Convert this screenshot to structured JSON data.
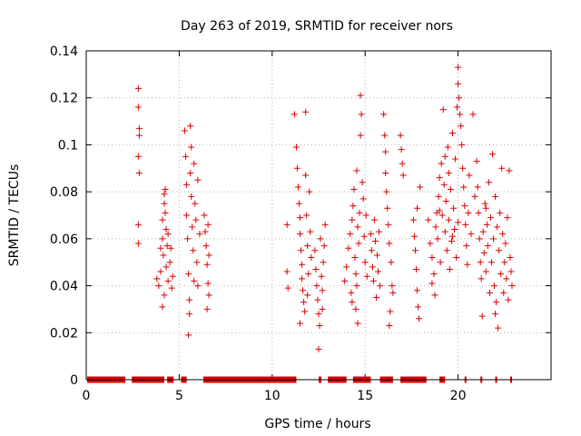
{
  "chart_data": {
    "type": "scatter",
    "title": "Day 263 of 2019, SRMTID for receiver nors",
    "xlabel": "GPS time / hours",
    "ylabel": "SRMTID / TECUs",
    "xlim": [
      0,
      25
    ],
    "ylim": [
      0,
      0.14
    ],
    "grid": true,
    "marker": "+",
    "xticks": [
      {
        "value": 0,
        "label": "0"
      },
      {
        "value": 5,
        "label": "5"
      },
      {
        "value": 10,
        "label": "10"
      },
      {
        "value": 15,
        "label": "15"
      },
      {
        "value": 20,
        "label": "20"
      }
    ],
    "yticks": [
      {
        "value": 0,
        "label": "0"
      },
      {
        "value": 0.02,
        "label": "0.02"
      },
      {
        "value": 0.04,
        "label": "0.04"
      },
      {
        "value": 0.06,
        "label": "0.06"
      },
      {
        "value": 0.08,
        "label": "0.08"
      },
      {
        "value": 0.1,
        "label": "0.1"
      },
      {
        "value": 0.12,
        "label": "0.12"
      },
      {
        "value": 0.14,
        "label": "0.14"
      }
    ],
    "series": [
      {
        "name": "nors",
        "color": "#dd0000",
        "points": [
          [
            2.8,
            0.124
          ],
          [
            2.8,
            0.116
          ],
          [
            2.85,
            0.107
          ],
          [
            2.85,
            0.104
          ],
          [
            2.8,
            0.095
          ],
          [
            2.85,
            0.088
          ],
          [
            2.8,
            0.066
          ],
          [
            2.8,
            0.058
          ],
          [
            3.8,
            0.043
          ],
          [
            3.9,
            0.04
          ],
          [
            4.0,
            0.046
          ],
          [
            4.0,
            0.056
          ],
          [
            4.1,
            0.068
          ],
          [
            4.1,
            0.06
          ],
          [
            4.15,
            0.053
          ],
          [
            4.2,
            0.079
          ],
          [
            4.2,
            0.075
          ],
          [
            4.2,
            0.036
          ],
          [
            4.25,
            0.071
          ],
          [
            4.3,
            0.064
          ],
          [
            4.3,
            0.048
          ],
          [
            4.35,
            0.057
          ],
          [
            4.4,
            0.042
          ],
          [
            4.5,
            0.05
          ],
          [
            4.55,
            0.056
          ],
          [
            4.6,
            0.039
          ],
          [
            4.65,
            0.044
          ],
          [
            4.1,
            0.031
          ],
          [
            4.25,
            0.081
          ],
          [
            4.4,
            0.062
          ],
          [
            5.3,
            0.106
          ],
          [
            5.35,
            0.095
          ],
          [
            5.4,
            0.083
          ],
          [
            5.4,
            0.07
          ],
          [
            5.45,
            0.06
          ],
          [
            5.5,
            0.045
          ],
          [
            5.5,
            0.019
          ],
          [
            5.55,
            0.028
          ],
          [
            5.6,
            0.108
          ],
          [
            5.6,
            0.088
          ],
          [
            5.65,
            0.078
          ],
          [
            5.7,
            0.065
          ],
          [
            5.75,
            0.055
          ],
          [
            5.8,
            0.092
          ],
          [
            5.8,
            0.042
          ],
          [
            5.85,
            0.075
          ],
          [
            5.9,
            0.068
          ],
          [
            5.95,
            0.05
          ],
          [
            6.0,
            0.085
          ],
          [
            6.0,
            0.04
          ],
          [
            6.1,
            0.062
          ],
          [
            5.55,
            0.034
          ],
          [
            5.65,
            0.099
          ],
          [
            6.35,
            0.07
          ],
          [
            6.4,
            0.063
          ],
          [
            6.45,
            0.057
          ],
          [
            6.5,
            0.049
          ],
          [
            6.55,
            0.041
          ],
          [
            6.6,
            0.036
          ],
          [
            6.5,
            0.03
          ],
          [
            6.55,
            0.066
          ],
          [
            6.6,
            0.053
          ],
          [
            10.8,
            0.066
          ],
          [
            10.8,
            0.046
          ],
          [
            10.85,
            0.039
          ],
          [
            11.2,
            0.113
          ],
          [
            11.3,
            0.099
          ],
          [
            11.35,
            0.09
          ],
          [
            11.4,
            0.082
          ],
          [
            11.45,
            0.075
          ],
          [
            11.5,
            0.069
          ],
          [
            11.5,
            0.062
          ],
          [
            11.55,
            0.055
          ],
          [
            11.6,
            0.049
          ],
          [
            11.6,
            0.043
          ],
          [
            11.65,
            0.038
          ],
          [
            11.7,
            0.033
          ],
          [
            11.75,
            0.029
          ],
          [
            11.8,
            0.114
          ],
          [
            11.8,
            0.087
          ],
          [
            11.85,
            0.07
          ],
          [
            11.9,
            0.057
          ],
          [
            11.95,
            0.045
          ],
          [
            12.0,
            0.08
          ],
          [
            12.05,
            0.063
          ],
          [
            12.1,
            0.052
          ],
          [
            11.5,
            0.024
          ],
          [
            11.9,
            0.036
          ],
          [
            12.3,
            0.055
          ],
          [
            12.35,
            0.047
          ],
          [
            12.4,
            0.04
          ],
          [
            12.45,
            0.034
          ],
          [
            12.5,
            0.028
          ],
          [
            12.5,
            0.013
          ],
          [
            12.55,
            0.023
          ],
          [
            12.6,
            0.06
          ],
          [
            12.65,
            0.044
          ],
          [
            12.7,
            0.038
          ],
          [
            12.75,
            0.05
          ],
          [
            12.8,
            0.057
          ],
          [
            12.85,
            0.066
          ],
          [
            12.7,
            0.03
          ],
          [
            13.9,
            0.042
          ],
          [
            14.0,
            0.048
          ],
          [
            14.1,
            0.056
          ],
          [
            14.2,
            0.062
          ],
          [
            14.25,
            0.037
          ],
          [
            14.3,
            0.068
          ],
          [
            14.35,
            0.074
          ],
          [
            14.4,
            0.081
          ],
          [
            14.45,
            0.052
          ],
          [
            14.5,
            0.045
          ],
          [
            14.5,
            0.03
          ],
          [
            14.55,
            0.089
          ],
          [
            14.6,
            0.065
          ],
          [
            14.6,
            0.024
          ],
          [
            14.65,
            0.058
          ],
          [
            14.7,
            0.071
          ],
          [
            14.75,
            0.121
          ],
          [
            14.75,
            0.104
          ],
          [
            14.8,
            0.113
          ],
          [
            14.85,
            0.084
          ],
          [
            14.9,
            0.077
          ],
          [
            14.95,
            0.061
          ],
          [
            15.0,
            0.05
          ],
          [
            15.05,
            0.07
          ],
          [
            15.1,
            0.044
          ],
          [
            14.3,
            0.033
          ],
          [
            14.55,
            0.04
          ],
          [
            15.3,
            0.062
          ],
          [
            15.35,
            0.055
          ],
          [
            15.4,
            0.048
          ],
          [
            15.45,
            0.042
          ],
          [
            15.5,
            0.068
          ],
          [
            15.55,
            0.059
          ],
          [
            15.6,
            0.035
          ],
          [
            15.65,
            0.053
          ],
          [
            15.7,
            0.046
          ],
          [
            15.75,
            0.063
          ],
          [
            15.8,
            0.04
          ],
          [
            16.0,
            0.113
          ],
          [
            16.05,
            0.104
          ],
          [
            16.1,
            0.097
          ],
          [
            16.1,
            0.088
          ],
          [
            16.15,
            0.08
          ],
          [
            16.2,
            0.073
          ],
          [
            16.25,
            0.066
          ],
          [
            16.3,
            0.023
          ],
          [
            16.3,
            0.058
          ],
          [
            16.35,
            0.029
          ],
          [
            16.4,
            0.05
          ],
          [
            16.45,
            0.04
          ],
          [
            16.5,
            0.037
          ],
          [
            16.9,
            0.104
          ],
          [
            16.95,
            0.098
          ],
          [
            17.0,
            0.092
          ],
          [
            17.05,
            0.087
          ],
          [
            17.6,
            0.068
          ],
          [
            17.65,
            0.061
          ],
          [
            17.7,
            0.055
          ],
          [
            17.75,
            0.047
          ],
          [
            17.8,
            0.038
          ],
          [
            17.85,
            0.031
          ],
          [
            17.9,
            0.026
          ],
          [
            17.95,
            0.082
          ],
          [
            17.8,
            0.073
          ],
          [
            18.4,
            0.068
          ],
          [
            18.5,
            0.058
          ],
          [
            18.6,
            0.052
          ],
          [
            18.7,
            0.045
          ],
          [
            18.75,
            0.036
          ],
          [
            18.8,
            0.065
          ],
          [
            18.85,
            0.071
          ],
          [
            18.9,
            0.06
          ],
          [
            18.95,
            0.078
          ],
          [
            19.0,
            0.086
          ],
          [
            19.05,
            0.05
          ],
          [
            19.1,
            0.092
          ],
          [
            19.15,
            0.07
          ],
          [
            19.2,
            0.115
          ],
          [
            19.25,
            0.083
          ],
          [
            19.3,
            0.063
          ],
          [
            19.35,
            0.076
          ],
          [
            19.4,
            0.055
          ],
          [
            19.45,
            0.099
          ],
          [
            19.5,
            0.088
          ],
          [
            19.5,
            0.068
          ],
          [
            19.55,
            0.047
          ],
          [
            19.6,
            0.081
          ],
          [
            19.65,
            0.059
          ],
          [
            19.7,
            0.105
          ],
          [
            19.75,
            0.073
          ],
          [
            19.8,
            0.064
          ],
          [
            19.85,
            0.094
          ],
          [
            19.9,
            0.052
          ],
          [
            19.95,
            0.116
          ],
          [
            20.0,
            0.133
          ],
          [
            20.0,
            0.126
          ],
          [
            20.05,
            0.12
          ],
          [
            20.1,
            0.113
          ],
          [
            20.15,
            0.108
          ],
          [
            20.2,
            0.1
          ],
          [
            20.25,
            0.09
          ],
          [
            20.3,
            0.082
          ],
          [
            20.35,
            0.074
          ],
          [
            20.4,
            0.066
          ],
          [
            20.45,
            0.057
          ],
          [
            20.5,
            0.049
          ],
          [
            20.55,
            0.071
          ],
          [
            20.6,
            0.087
          ],
          [
            20.7,
            0.062
          ],
          [
            20.8,
            0.113
          ],
          [
            20.9,
            0.078
          ],
          [
            18.6,
            0.041
          ],
          [
            19.0,
            0.072
          ],
          [
            19.3,
            0.095
          ],
          [
            19.7,
            0.061
          ],
          [
            20.0,
            0.067
          ],
          [
            21.0,
            0.093
          ],
          [
            21.05,
            0.082
          ],
          [
            21.1,
            0.071
          ],
          [
            21.15,
            0.06
          ],
          [
            21.2,
            0.05
          ],
          [
            21.25,
            0.043
          ],
          [
            21.3,
            0.027
          ],
          [
            21.35,
            0.063
          ],
          [
            21.4,
            0.054
          ],
          [
            21.45,
            0.075
          ],
          [
            21.5,
            0.046
          ],
          [
            21.55,
            0.066
          ],
          [
            21.6,
            0.057
          ],
          [
            21.65,
            0.084
          ],
          [
            21.7,
            0.037
          ],
          [
            21.75,
            0.069
          ],
          [
            21.8,
            0.05
          ],
          [
            21.85,
            0.096
          ],
          [
            21.9,
            0.06
          ],
          [
            21.95,
            0.04
          ],
          [
            22.0,
            0.078
          ],
          [
            22.05,
            0.033
          ],
          [
            22.1,
            0.065
          ],
          [
            22.15,
            0.022
          ],
          [
            22.2,
            0.055
          ],
          [
            22.25,
            0.071
          ],
          [
            22.3,
            0.045
          ],
          [
            22.35,
            0.09
          ],
          [
            22.4,
            0.062
          ],
          [
            22.45,
            0.037
          ],
          [
            22.5,
            0.05
          ],
          [
            22.55,
            0.058
          ],
          [
            22.6,
            0.043
          ],
          [
            22.65,
            0.069
          ],
          [
            22.7,
            0.034
          ],
          [
            22.75,
            0.089
          ],
          [
            22.8,
            0.052
          ],
          [
            22.85,
            0.046
          ],
          [
            22.9,
            0.04
          ],
          [
            21.5,
            0.073
          ],
          [
            22.0,
            0.028
          ]
        ],
        "zero_segments": [
          [
            0.05,
            2.1
          ],
          [
            2.45,
            4.2
          ],
          [
            4.35,
            4.7
          ],
          [
            5.1,
            5.4
          ],
          [
            6.3,
            11.3
          ],
          [
            12.5,
            12.65
          ],
          [
            13.0,
            14.0
          ],
          [
            14.35,
            15.3
          ],
          [
            15.8,
            16.5
          ],
          [
            16.9,
            18.3
          ],
          [
            19.0,
            19.3
          ],
          [
            20.35,
            20.45
          ],
          [
            21.2,
            21.3
          ],
          [
            22.0,
            22.1
          ],
          [
            22.8,
            22.9
          ]
        ]
      }
    ]
  }
}
